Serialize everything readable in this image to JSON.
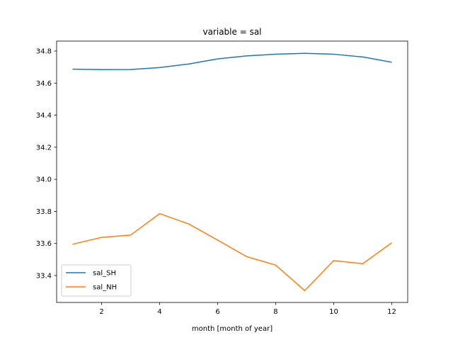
{
  "chart_data": {
    "type": "line",
    "title": "variable = sal",
    "xlabel": "month [month of year]",
    "ylabel": "",
    "xlim": [
      0.45,
      12.55
    ],
    "ylim": [
      33.232,
      34.862
    ],
    "xticks": [
      2,
      4,
      6,
      8,
      10,
      12
    ],
    "yticks": [
      33.4,
      33.6,
      33.8,
      34.0,
      34.2,
      34.4,
      34.6,
      34.8
    ],
    "x": [
      1,
      2,
      3,
      4,
      5,
      6,
      7,
      8,
      9,
      10,
      11,
      12
    ],
    "series": [
      {
        "name": "sal_SH",
        "color": "#1f77b4",
        "values": [
          34.687,
          34.684,
          34.685,
          34.697,
          34.719,
          34.751,
          34.77,
          34.78,
          34.786,
          34.78,
          34.763,
          34.73
        ]
      },
      {
        "name": "sal_NH",
        "color": "#ff7f0e",
        "values": [
          33.595,
          33.638,
          33.652,
          33.786,
          33.722,
          33.621,
          33.518,
          33.465,
          33.306,
          33.493,
          33.474,
          33.604
        ]
      }
    ],
    "grid": false,
    "legend_position": "lower-left"
  }
}
